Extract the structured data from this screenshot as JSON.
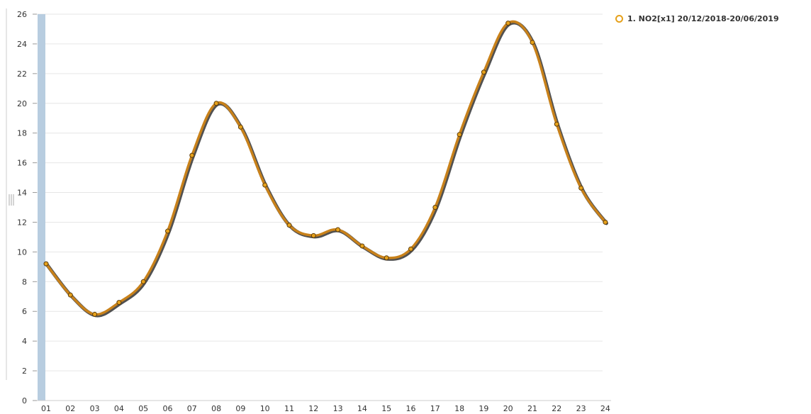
{
  "colors": {
    "line": "#c8811a",
    "line_shadow": "#333333",
    "marker": "#e6a11b",
    "grid": "#e6e6e6",
    "axis_band": "#b8cde0"
  },
  "chart_data": {
    "type": "line",
    "categories": [
      "01",
      "02",
      "03",
      "04",
      "05",
      "06",
      "07",
      "08",
      "09",
      "10",
      "11",
      "12",
      "13",
      "14",
      "15",
      "16",
      "17",
      "18",
      "19",
      "20",
      "21",
      "22",
      "23",
      "24"
    ],
    "series": [
      {
        "name": "1. NO2[x1] 20/12/2018-20/06/2019",
        "values": [
          9.2,
          7.1,
          5.8,
          6.6,
          8.0,
          11.4,
          16.5,
          20.0,
          18.4,
          14.5,
          11.8,
          11.1,
          11.5,
          10.4,
          9.6,
          10.2,
          13.0,
          17.9,
          22.1,
          25.4,
          24.1,
          18.6,
          14.3,
          12.0
        ]
      }
    ],
    "yticks": [
      "0",
      "2",
      "4",
      "6",
      "8",
      "10",
      "12",
      "14",
      "16",
      "18",
      "20",
      "22",
      "24",
      "26"
    ],
    "ylim": [
      0,
      26
    ],
    "grid": true,
    "legend_position": "top-right"
  }
}
